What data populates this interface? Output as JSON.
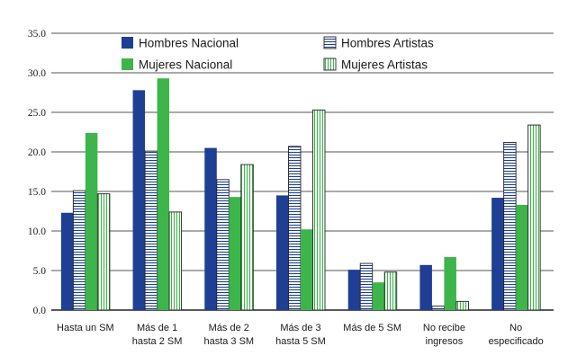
{
  "chart_data": {
    "type": "bar",
    "categories": [
      [
        "Hasta un SM"
      ],
      [
        "Más de 1",
        "hasta 2 SM"
      ],
      [
        "Más de 2",
        "hasta 3 SM"
      ],
      [
        "Más de 3",
        "hasta 5 SM"
      ],
      [
        "Más de 5 SM"
      ],
      [
        "No recibe",
        "ingresos"
      ],
      [
        "No",
        "especificado"
      ]
    ],
    "series": [
      {
        "name": "Hombres Nacional",
        "fill": "#1f3f94",
        "pattern": "solid",
        "values": [
          12.3,
          27.8,
          20.5,
          14.5,
          5.1,
          5.7,
          14.2
        ]
      },
      {
        "name": "Hombres Artistas",
        "fill": "#1f3f94",
        "pattern": "horizontal-lines",
        "values": [
          15.1,
          20.1,
          16.5,
          20.7,
          5.9,
          0.5,
          21.2
        ]
      },
      {
        "name": "Mujeres Nacional",
        "fill": "#3db54a",
        "pattern": "solid",
        "values": [
          22.4,
          29.3,
          14.3,
          10.2,
          3.5,
          6.7,
          13.3
        ]
      },
      {
        "name": "Mujeres Artistas",
        "fill": "#3db54a",
        "pattern": "vertical-lines",
        "values": [
          14.7,
          12.4,
          18.4,
          25.3,
          4.8,
          1.1,
          23.4
        ]
      }
    ],
    "y_ticks": [
      "0.0",
      "5.0",
      "10.0",
      "15.0",
      "20.0",
      "25.0",
      "30.0",
      "35.0"
    ],
    "ylim": [
      0,
      35
    ],
    "grid": "horizontal",
    "legend_placement": "top"
  }
}
